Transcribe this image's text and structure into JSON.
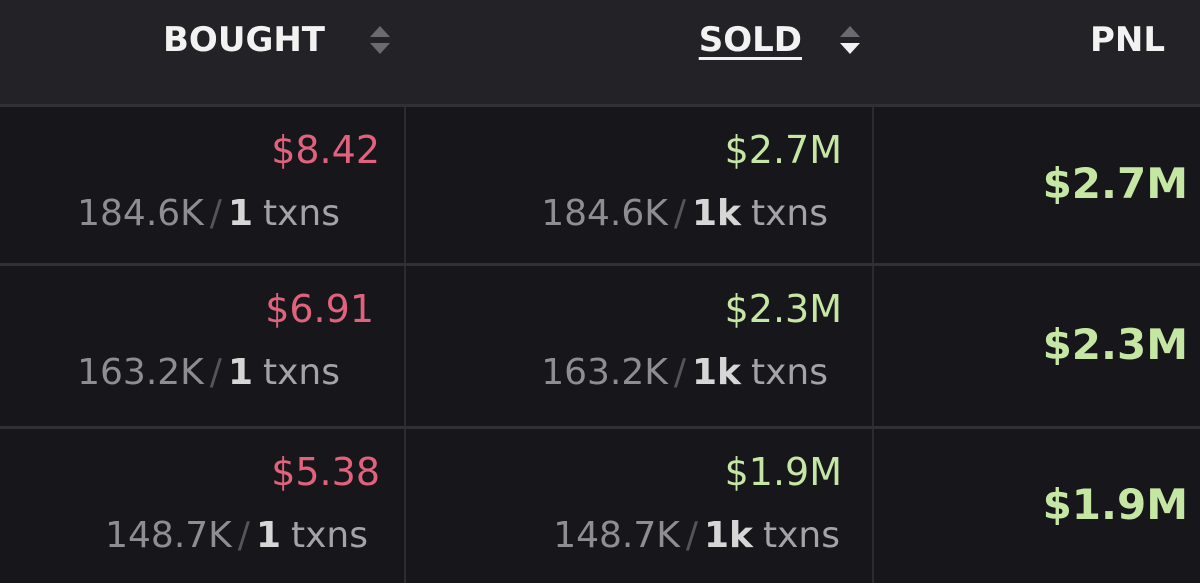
{
  "header": {
    "bought": "BOUGHT",
    "sold": "SOLD",
    "pnl": "PNL"
  },
  "rows": [
    {
      "bought": {
        "amount": "$8.42",
        "tokens": "184.6K",
        "divider": "/",
        "txns": "1",
        "unit": "txns"
      },
      "sold": {
        "amount": "$2.7M",
        "tokens": "184.6K",
        "divider": "/",
        "txns": "1k",
        "unit": "txns"
      },
      "pnl": "$2.7M"
    },
    {
      "bought": {
        "amount": "$6.91",
        "tokens": "163.2K",
        "divider": "/",
        "txns": "1",
        "unit": "txns"
      },
      "sold": {
        "amount": "$2.3M",
        "tokens": "163.2K",
        "divider": "/",
        "txns": "1k",
        "unit": "txns"
      },
      "pnl": "$2.3M"
    },
    {
      "bought": {
        "amount": "$5.38",
        "tokens": "148.7K",
        "divider": "/",
        "txns": "1",
        "unit": "txns"
      },
      "sold": {
        "amount": "$1.9M",
        "tokens": "148.7K",
        "divider": "/",
        "txns": "1k",
        "unit": "txns"
      },
      "pnl": "$1.9M"
    }
  ]
}
